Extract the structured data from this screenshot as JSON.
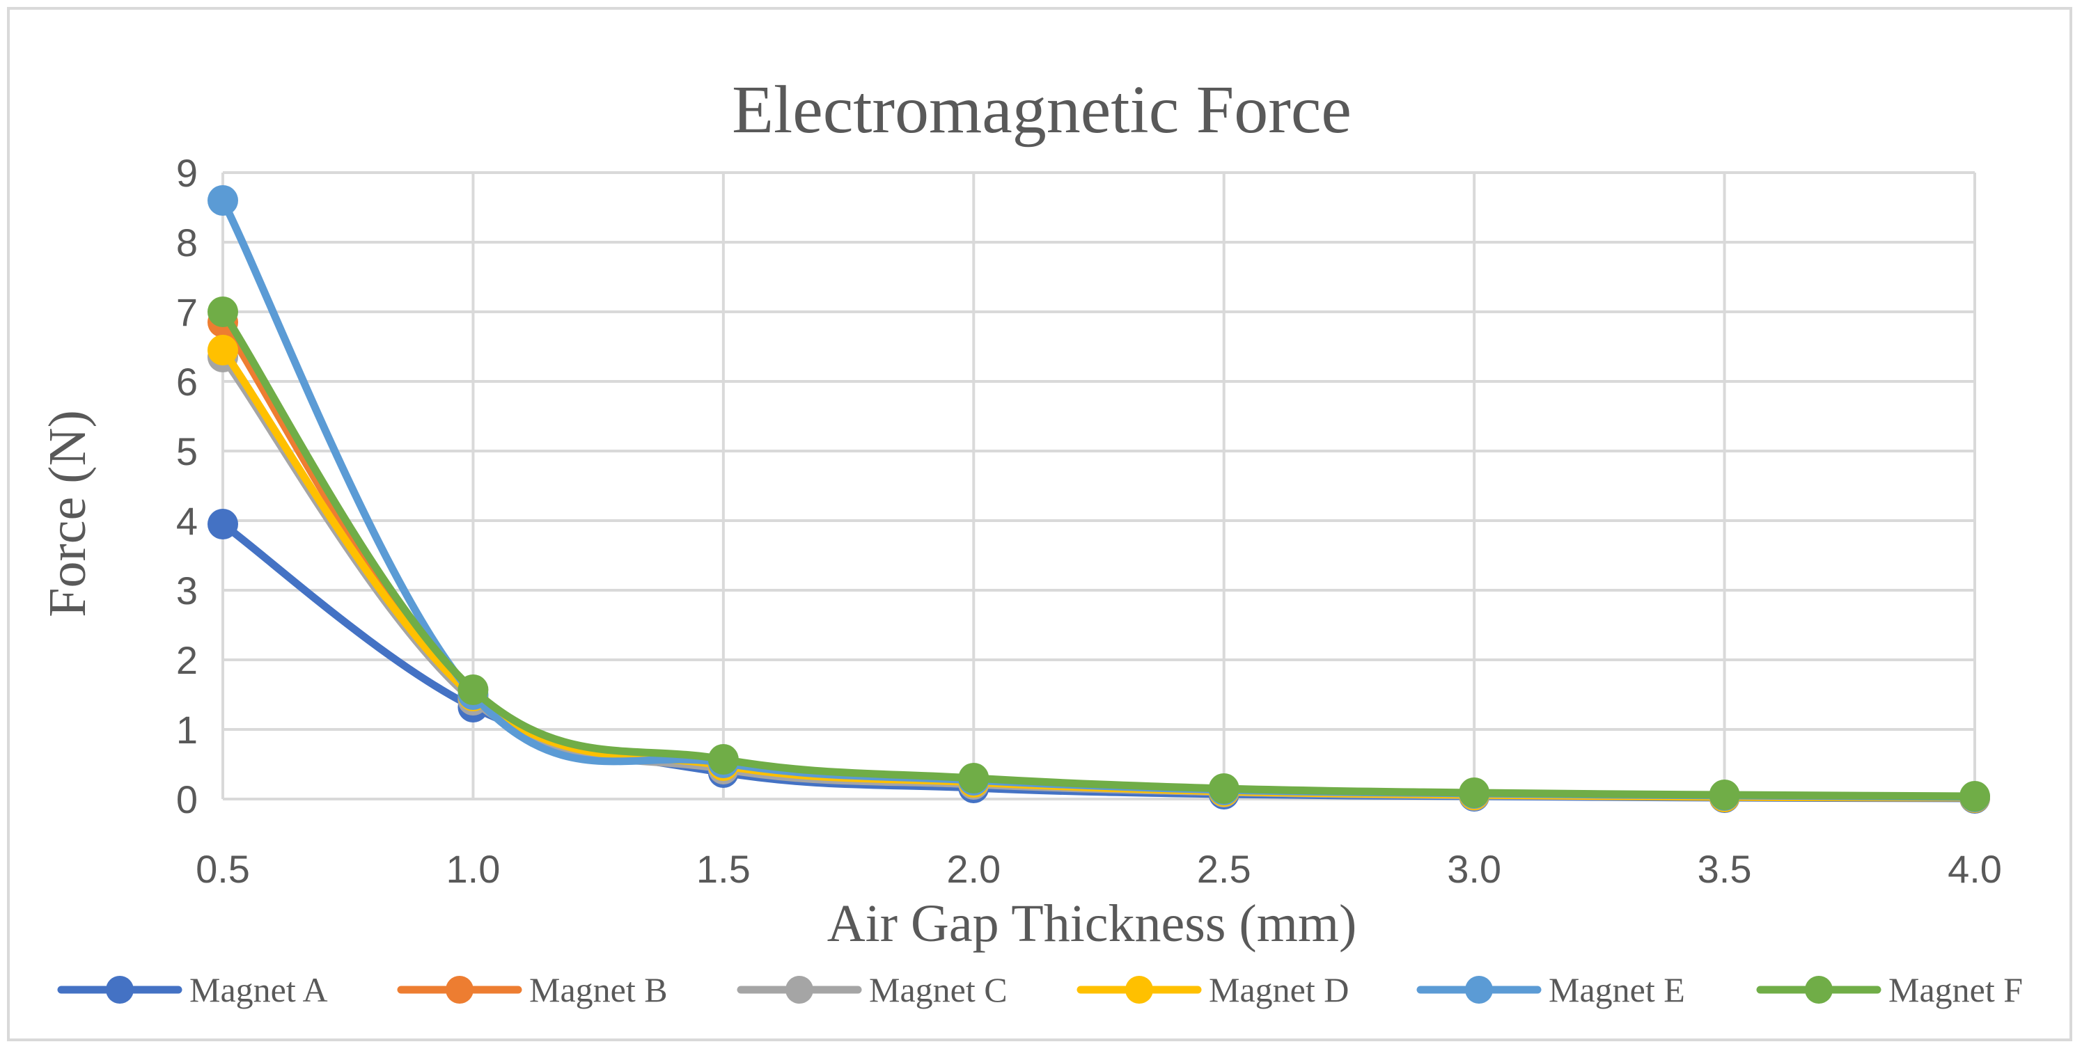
{
  "chart_data": {
    "type": "line",
    "title": "Electromagnetic Force",
    "xlabel": "Air Gap Thickness (mm)",
    "ylabel": "Force (N)",
    "x": [
      "0.5",
      "1.0",
      "1.5",
      "2.0",
      "2.5",
      "3.0",
      "3.5",
      "4.0"
    ],
    "xlim": [
      0.5,
      4.0
    ],
    "ylim": [
      0,
      9
    ],
    "yticks": [
      "0",
      "1",
      "2",
      "3",
      "4",
      "5",
      "6",
      "7",
      "8",
      "9"
    ],
    "grid": true,
    "legend_position": "bottom",
    "series": [
      {
        "name": "Magnet A",
        "color": "#4472C4",
        "values": [
          3.95,
          1.32,
          0.38,
          0.16,
          0.07,
          0.04,
          0.02,
          0.01
        ]
      },
      {
        "name": "Magnet B",
        "color": "#ED7D31",
        "values": [
          6.85,
          1.45,
          0.45,
          0.22,
          0.1,
          0.06,
          0.03,
          0.02
        ]
      },
      {
        "name": "Magnet C",
        "color": "#A5A5A5",
        "values": [
          6.35,
          1.42,
          0.43,
          0.21,
          0.1,
          0.05,
          0.03,
          0.02
        ]
      },
      {
        "name": "Magnet D",
        "color": "#FFC000",
        "values": [
          6.45,
          1.48,
          0.48,
          0.24,
          0.11,
          0.06,
          0.03,
          0.02
        ]
      },
      {
        "name": "Magnet E",
        "color": "#5B9BD5",
        "values": [
          8.6,
          1.5,
          0.52,
          0.27,
          0.13,
          0.08,
          0.05,
          0.03
        ]
      },
      {
        "name": "Magnet F",
        "color": "#70AD47",
        "values": [
          7.0,
          1.57,
          0.57,
          0.3,
          0.15,
          0.09,
          0.06,
          0.04
        ]
      }
    ]
  }
}
